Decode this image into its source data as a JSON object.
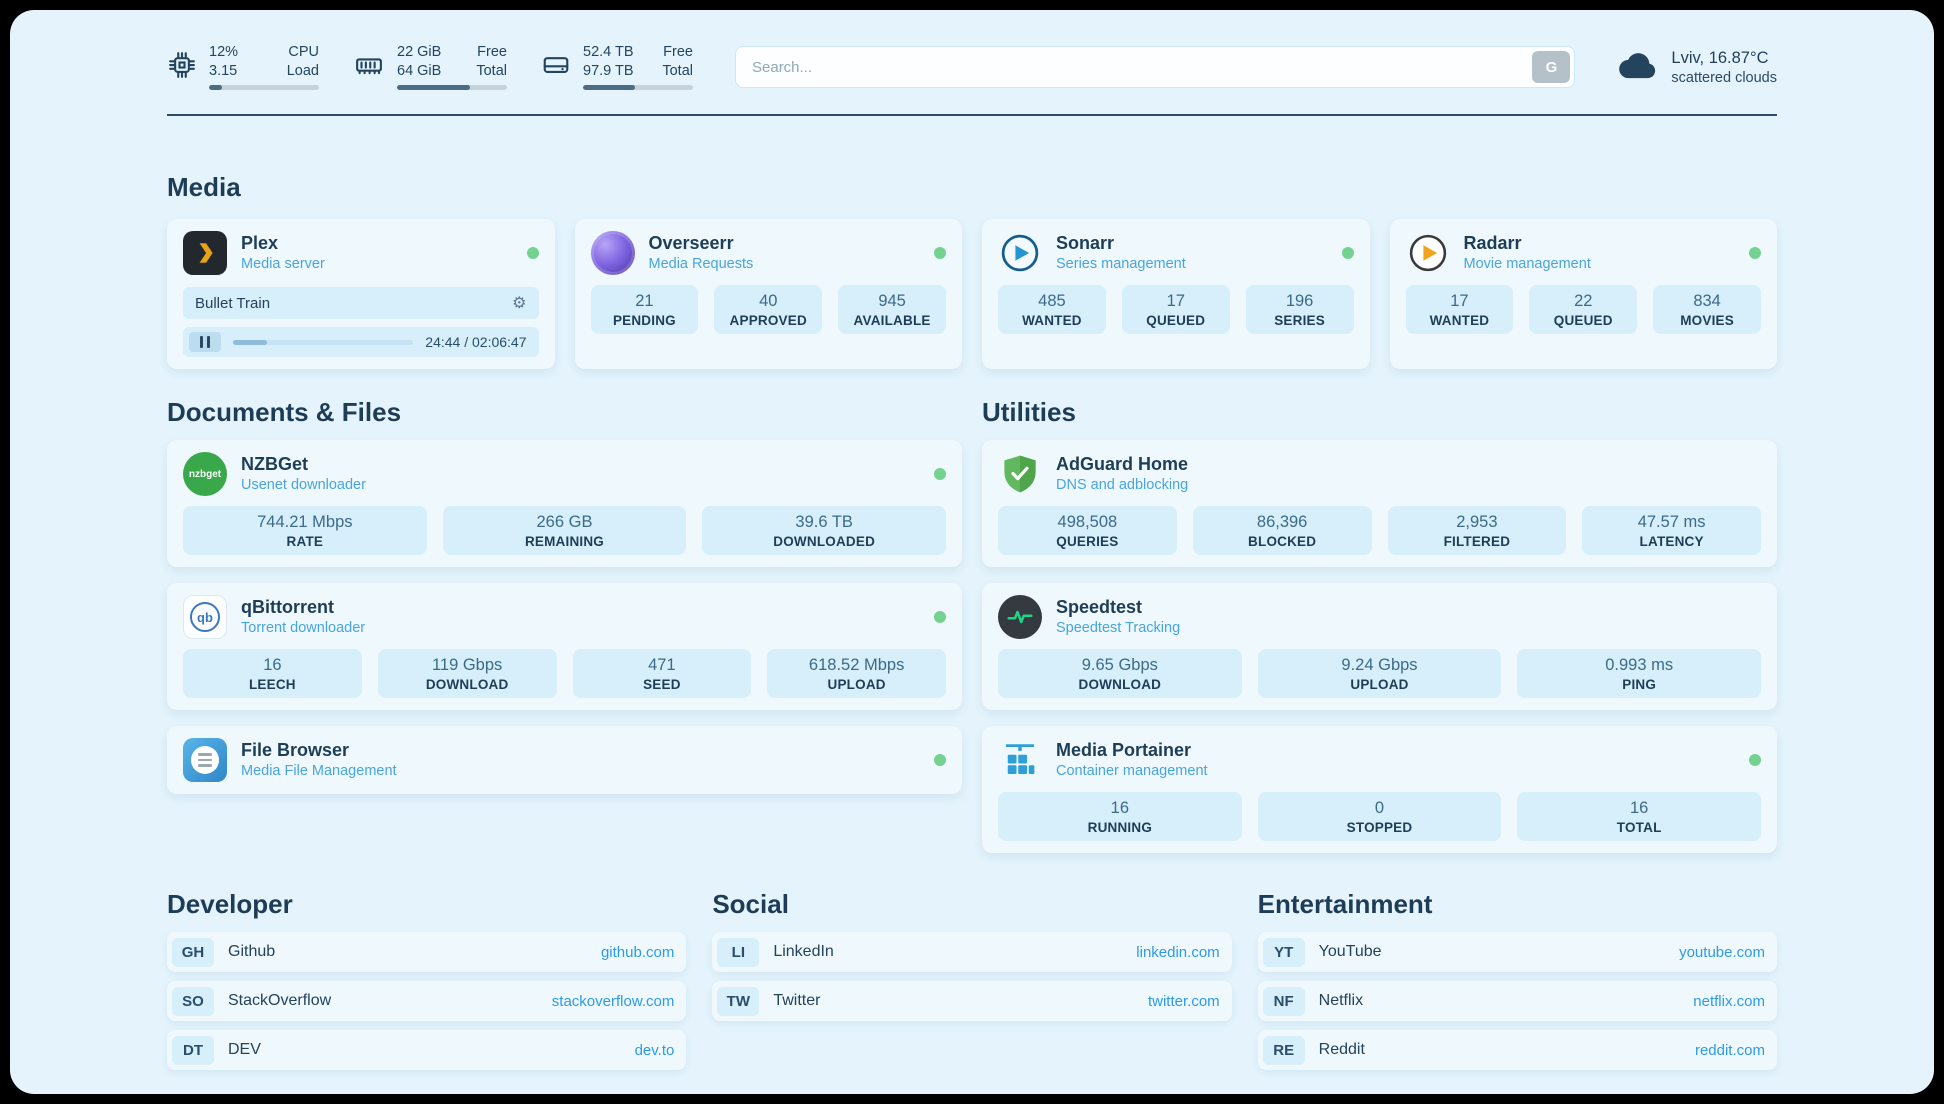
{
  "theme": {
    "page_bg": "#e5f4fc",
    "card_bg": "#eef8fd",
    "tile_bg": "#d7eefb",
    "text_dark": "#1e3d57",
    "subtitle_blue": "#49a5dd",
    "link_blue": "#2e9be6",
    "status_green": "#74d291"
  },
  "topbar": {
    "metrics": [
      {
        "id": "cpu",
        "rows": [
          [
            "12%",
            "CPU"
          ],
          [
            "3.15",
            "Load"
          ]
        ],
        "progress": 12
      },
      {
        "id": "memory",
        "rows": [
          [
            "22 GiB",
            "Free"
          ],
          [
            "64 GiB",
            "Total"
          ]
        ],
        "progress": 66
      },
      {
        "id": "storage",
        "rows": [
          [
            "52.4 TB",
            "Free"
          ],
          [
            "97.9 TB",
            "Total"
          ]
        ],
        "progress": 47
      }
    ],
    "search": {
      "placeholder": "Search...",
      "button_label": "G"
    },
    "weather": {
      "location": "Lviv, 16.87°C",
      "condition": "scattered clouds"
    }
  },
  "sections": {
    "media": "Media",
    "documents": "Documents & Files",
    "utilities": "Utilities",
    "developer": "Developer",
    "social": "Social",
    "entertainment": "Entertainment"
  },
  "apps": {
    "plex": {
      "name": "Plex",
      "subtitle": "Media server",
      "now_playing": {
        "title": "Bullet Train",
        "time": "24:44 / 02:06:47",
        "progress": 19
      }
    },
    "overseerr": {
      "name": "Overseerr",
      "subtitle": "Media Requests",
      "stats": [
        {
          "value": "21",
          "label": "PENDING"
        },
        {
          "value": "40",
          "label": "APPROVED"
        },
        {
          "value": "945",
          "label": "AVAILABLE"
        }
      ]
    },
    "sonarr": {
      "name": "Sonarr",
      "subtitle": "Series management",
      "stats": [
        {
          "value": "485",
          "label": "WANTED"
        },
        {
          "value": "17",
          "label": "QUEUED"
        },
        {
          "value": "196",
          "label": "SERIES"
        }
      ]
    },
    "radarr": {
      "name": "Radarr",
      "subtitle": "Movie management",
      "stats": [
        {
          "value": "17",
          "label": "WANTED"
        },
        {
          "value": "22",
          "label": "QUEUED"
        },
        {
          "value": "834",
          "label": "MOVIES"
        }
      ]
    },
    "nzbget": {
      "name": "NZBGet",
      "subtitle": "Usenet downloader",
      "icon_text": "nzbget",
      "stats": [
        {
          "value": "744.21 Mbps",
          "label": "RATE"
        },
        {
          "value": "266 GB",
          "label": "REMAINING"
        },
        {
          "value": "39.6 TB",
          "label": "DOWNLOADED"
        }
      ]
    },
    "qbittorrent": {
      "name": "qBittorrent",
      "subtitle": "Torrent downloader",
      "icon_text": "qb",
      "stats": [
        {
          "value": "16",
          "label": "LEECH"
        },
        {
          "value": "119 Gbps",
          "label": "DOWNLOAD"
        },
        {
          "value": "471",
          "label": "SEED"
        },
        {
          "value": "618.52 Mbps",
          "label": "UPLOAD"
        }
      ]
    },
    "filebrowser": {
      "name": "File Browser",
      "subtitle": "Media File Management"
    },
    "adguard": {
      "name": "AdGuard Home",
      "subtitle": "DNS and adblocking",
      "stats": [
        {
          "value": "498,508",
          "label": "QUERIES"
        },
        {
          "value": "86,396",
          "label": "BLOCKED"
        },
        {
          "value": "2,953",
          "label": "FILTERED"
        },
        {
          "value": "47.57 ms",
          "label": "LATENCY"
        }
      ]
    },
    "speedtest": {
      "name": "Speedtest",
      "subtitle": "Speedtest Tracking",
      "stats": [
        {
          "value": "9.65 Gbps",
          "label": "DOWNLOAD"
        },
        {
          "value": "9.24 Gbps",
          "label": "UPLOAD"
        },
        {
          "value": "0.993 ms",
          "label": "PING"
        }
      ]
    },
    "portainer": {
      "name": "Media Portainer",
      "subtitle": "Container management",
      "stats": [
        {
          "value": "16",
          "label": "RUNNING"
        },
        {
          "value": "0",
          "label": "STOPPED"
        },
        {
          "value": "16",
          "label": "TOTAL"
        }
      ]
    }
  },
  "bookmarks": {
    "developer": [
      {
        "abbr": "GH",
        "name": "Github",
        "url": "github.com"
      },
      {
        "abbr": "SO",
        "name": "StackOverflow",
        "url": "stackoverflow.com"
      },
      {
        "abbr": "DT",
        "name": "DEV",
        "url": "dev.to"
      }
    ],
    "social": [
      {
        "abbr": "LI",
        "name": "LinkedIn",
        "url": "linkedin.com"
      },
      {
        "abbr": "TW",
        "name": "Twitter",
        "url": "twitter.com"
      }
    ],
    "entertainment": [
      {
        "abbr": "YT",
        "name": "YouTube",
        "url": "youtube.com"
      },
      {
        "abbr": "NF",
        "name": "Netflix",
        "url": "netflix.com"
      },
      {
        "abbr": "RE",
        "name": "Reddit",
        "url": "reddit.com"
      }
    ]
  }
}
